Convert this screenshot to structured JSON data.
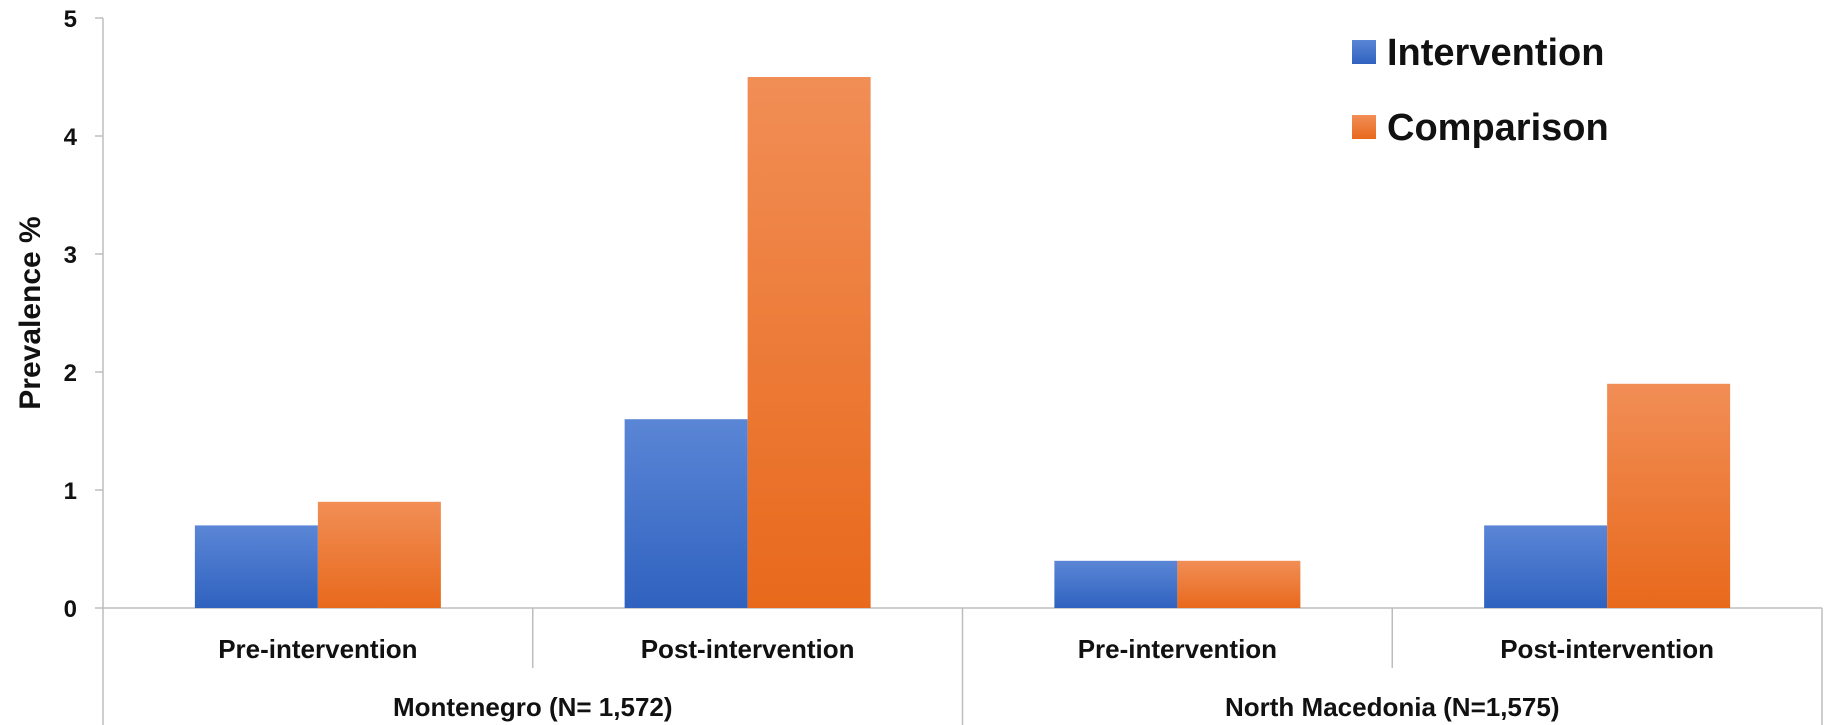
{
  "chart_data": {
    "type": "bar",
    "ylabel": "Prevalence %",
    "xlabel": "",
    "ylim": [
      0,
      5
    ],
    "yticks": [
      "0",
      "1",
      "2",
      "3",
      "4",
      "5"
    ],
    "grid": false,
    "legend_position": "top-right",
    "groups": [
      {
        "label": "Montenegro (N= 1,572)",
        "categories": [
          "Pre-intervention",
          "Post-intervention"
        ]
      },
      {
        "label": "North Macedonia (N=1,575)",
        "categories": [
          "Pre-intervention",
          "Post-intervention"
        ]
      }
    ],
    "categories": [
      "Pre-intervention",
      "Post-intervention",
      "Pre-intervention",
      "Post-intervention"
    ],
    "series": [
      {
        "name": "Intervention",
        "color": "#3a6fc9",
        "values": [
          0.7,
          1.6,
          0.4,
          0.7
        ]
      },
      {
        "name": "Comparison",
        "color": "#f07a2a",
        "values": [
          0.9,
          4.5,
          0.4,
          1.9
        ]
      }
    ]
  }
}
